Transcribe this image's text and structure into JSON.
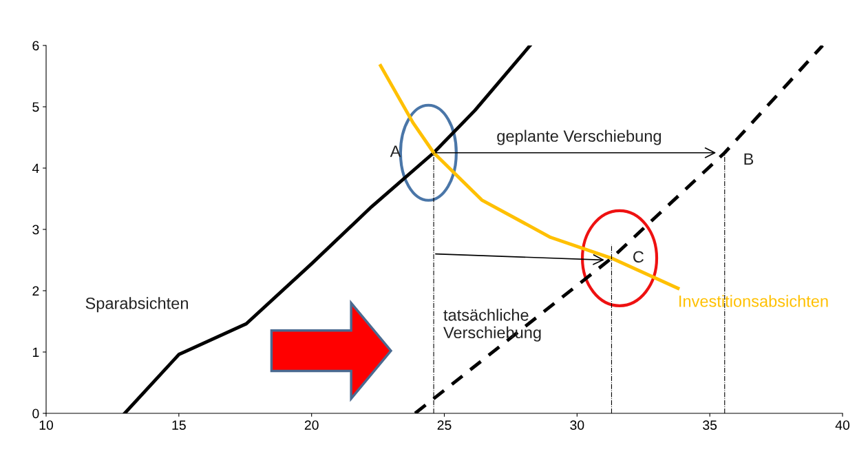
{
  "chart_data": {
    "type": "line",
    "xlim": [
      10,
      40
    ],
    "ylim": [
      0,
      6
    ],
    "xticks": [
      10,
      15,
      20,
      25,
      30,
      35,
      40
    ],
    "yticks": [
      0,
      1,
      2,
      3,
      4,
      5,
      6
    ],
    "grid": false,
    "series": [
      {
        "name": "Sparabsichten",
        "color": "#000000",
        "line_style": "solid",
        "x": [
          12.96,
          15.0,
          17.54,
          20.0,
          22.26,
          24.6,
          26.15,
          28.23
        ],
        "values": [
          0,
          0.96,
          1.46,
          2.44,
          3.37,
          4.25,
          4.94,
          6.0
        ]
      },
      {
        "color": "#000000",
        "line_style": "dashed",
        "x": [
          23.9,
          31.3,
          35.56,
          39.25
        ],
        "values": [
          0,
          2.53,
          4.25,
          6.0
        ]
      },
      {
        "name": "Investitionsabsichten",
        "color": "#ffc000",
        "line_style": "solid",
        "x": [
          22.6,
          23.82,
          24.6,
          26.41,
          29.0,
          31.3,
          33.8
        ],
        "values": [
          5.67,
          4.74,
          4.25,
          3.48,
          2.87,
          2.53,
          2.04
        ]
      },
      {
        "color": "#000000",
        "line_style": "dotted",
        "x": [
          24.6,
          24.6
        ],
        "values": [
          0,
          4.25
        ]
      },
      {
        "color": "#000000",
        "line_style": "dotted",
        "x": [
          31.3,
          31.3
        ],
        "values": [
          0,
          2.75
        ]
      },
      {
        "color": "#000000",
        "line_style": "dotted",
        "x": [
          35.56,
          35.56
        ],
        "values": [
          0,
          4.25
        ]
      }
    ],
    "annotations": [
      "geplante Verschiebung",
      "A",
      "B",
      "C",
      "tatsächliche\nVerschiebung"
    ]
  }
}
